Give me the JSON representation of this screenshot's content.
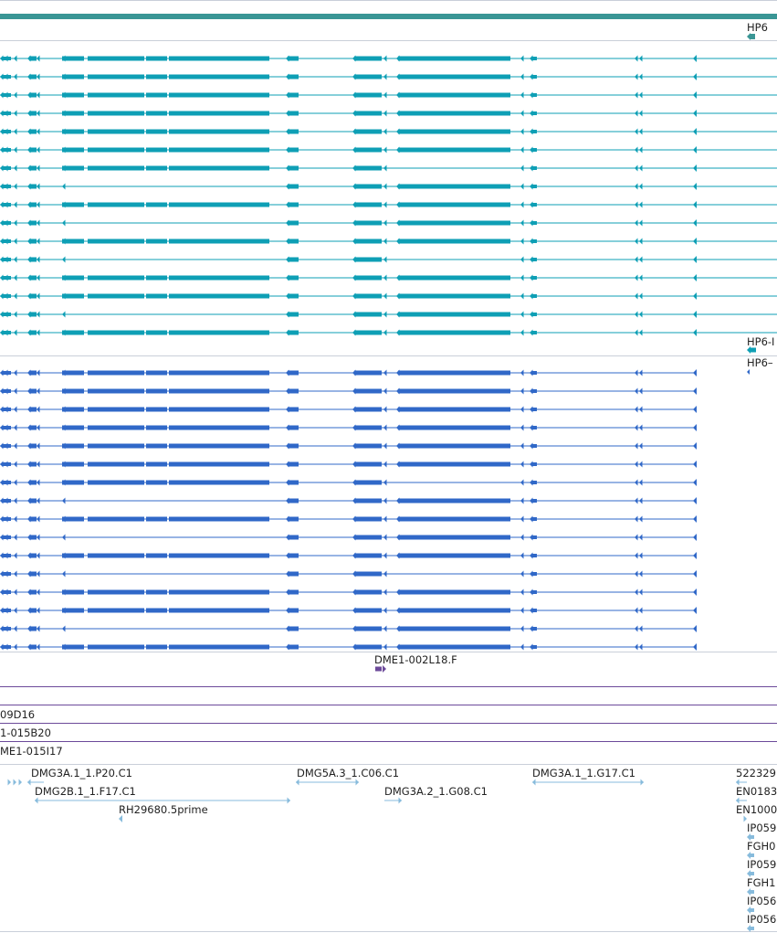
{
  "colors": {
    "top_bar": "#3a9695",
    "cyan_track": "#0e9fb5",
    "blue_track": "#3068c8",
    "purple_track": "#6c4a9a",
    "est_track": "#87bbdc",
    "divider": "#c9cfd9"
  },
  "labels": {
    "hp6_top": "HP6",
    "hp6_mid": "HP6-I",
    "hp6_mid2": "HP6–",
    "dme_002l18": "DME1-002L18.F",
    "clone_09d16": "09D16",
    "clone_015b20": "1-015B20",
    "clone_015i17": "ME1-015I17",
    "dmg3a_p20": "DMG3A.1_1.P20.C1",
    "dmg2b_f17": "DMG2B.1_1.F17.C1",
    "rh29680": "RH29680.5prime",
    "dmg5a3_c06": "DMG5A.3_1.C06.C1",
    "dmg3a2_g08": "DMG3A.2_1.G08.C1",
    "dmg3a_g17": "DMG3A.1_1.G17.C1",
    "id_5223": "522329",
    "id_en0183": "EN0183",
    "id_en1000": "EN1000",
    "id_ip059a": "IP059",
    "id_fgh0": "FGH0",
    "id_ip059b": "IP059",
    "id_fgh1": "FGH1",
    "id_ip056a": "IP056",
    "id_ip056b": "IP056"
  }
}
